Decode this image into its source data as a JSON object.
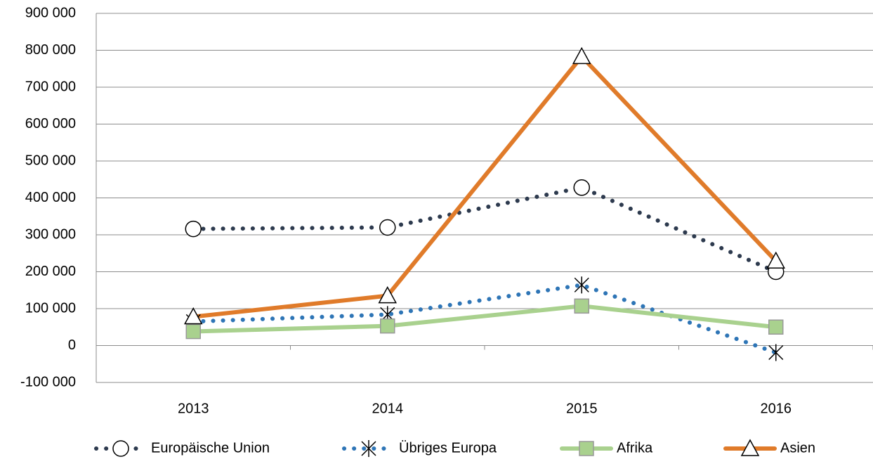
{
  "chart_data": {
    "type": "line",
    "categories": [
      "2013",
      "2014",
      "2015",
      "2016"
    ],
    "series": [
      {
        "name": "Europäische Union",
        "color": "#2d3a4e",
        "dash": "dots",
        "marker": "circle",
        "width": 6,
        "values": [
          316000,
          320000,
          428000,
          200000
        ]
      },
      {
        "name": "Übriges Europa",
        "color": "#2e75b6",
        "dash": "dots",
        "marker": "asterisk",
        "width": 6,
        "values": [
          65000,
          84000,
          164000,
          -19000
        ]
      },
      {
        "name": "Afrika",
        "color": "#a9d18e",
        "dash": "solid",
        "marker": "square",
        "width": 6,
        "values": [
          38000,
          53000,
          107000,
          50000
        ]
      },
      {
        "name": "Asien",
        "color": "#e07b2a",
        "dash": "solid",
        "marker": "triangle",
        "width": 6,
        "values": [
          78000,
          135000,
          783000,
          229000
        ]
      }
    ],
    "ylim": [
      -100000,
      900000
    ],
    "yticks": [
      {
        "value": -100000,
        "label": "-100 000"
      },
      0,
      {
        "value": 100000,
        "label": "100 000"
      },
      {
        "value": 200000,
        "label": "200 000"
      },
      {
        "value": 300000,
        "label": "300 000"
      },
      {
        "value": 400000,
        "label": "400 000"
      },
      {
        "value": 500000,
        "label": "500 000"
      },
      {
        "value": 600000,
        "label": "600 000"
      },
      {
        "value": 700000,
        "label": "700 000"
      },
      {
        "value": 800000,
        "label": "800 000"
      },
      {
        "value": 900000,
        "label": "900 000"
      }
    ],
    "grid": true,
    "legend": "bottom"
  }
}
